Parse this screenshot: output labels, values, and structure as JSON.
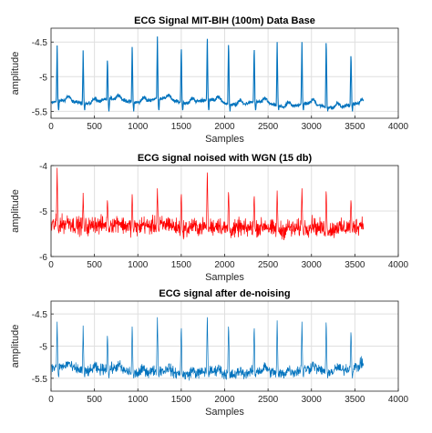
{
  "chart_data": [
    {
      "type": "line",
      "title": "ECG Signal MIT-BIH (100m) Data Base",
      "xlabel": "Samples",
      "ylabel": "amplitude",
      "xlim": [
        0,
        4000
      ],
      "ylim": [
        -5.6,
        -4.3
      ],
      "x_ticks": [
        0,
        500,
        1000,
        1500,
        2000,
        2500,
        3000,
        3500,
        4000
      ],
      "y_ticks": [
        -5.5,
        -5,
        -4.5
      ],
      "grid": true,
      "color": "#0072bd",
      "series": [
        {
          "x_range": [
            1,
            3600
          ],
          "baseline": -5.38,
          "noise": 0.02,
          "peaks": [
            {
              "x": 70,
              "y": -4.55
            },
            {
              "x": 370,
              "y": -4.62
            },
            {
              "x": 650,
              "y": -4.7
            },
            {
              "x": 935,
              "y": -4.48
            },
            {
              "x": 1225,
              "y": -4.42
            },
            {
              "x": 1500,
              "y": -4.52
            },
            {
              "x": 1800,
              "y": -4.35
            },
            {
              "x": 2045,
              "y": -4.45
            },
            {
              "x": 2340,
              "y": -4.53
            },
            {
              "x": 2605,
              "y": -4.5
            },
            {
              "x": 2890,
              "y": -4.5
            },
            {
              "x": 3170,
              "y": -4.42
            },
            {
              "x": 3455,
              "y": -4.63
            }
          ]
        }
      ]
    },
    {
      "type": "line",
      "title": "ECG signal noised with WGN (15 db)",
      "xlabel": "Samples",
      "ylabel": "amplitude",
      "xlim": [
        0,
        4000
      ],
      "ylim": [
        -6,
        -4
      ],
      "x_ticks": [
        0,
        500,
        1000,
        1500,
        2000,
        2500,
        3000,
        3500,
        4000
      ],
      "y_ticks": [
        -6,
        -5,
        -4
      ],
      "grid": true,
      "color": "#ff0000",
      "series": [
        {
          "x_range": [
            1,
            3600
          ],
          "baseline": -5.35,
          "noise": 0.16,
          "peaks": [
            {
              "x": 70,
              "y": -4.05
            },
            {
              "x": 370,
              "y": -4.6
            },
            {
              "x": 650,
              "y": -4.7
            },
            {
              "x": 935,
              "y": -4.55
            },
            {
              "x": 1225,
              "y": -4.5
            },
            {
              "x": 1500,
              "y": -4.55
            },
            {
              "x": 1800,
              "y": -4.02
            },
            {
              "x": 2045,
              "y": -4.5
            },
            {
              "x": 2340,
              "y": -4.6
            },
            {
              "x": 2605,
              "y": -4.55
            },
            {
              "x": 2890,
              "y": -4.5
            },
            {
              "x": 3170,
              "y": -4.48
            },
            {
              "x": 3455,
              "y": -4.7
            }
          ]
        }
      ]
    },
    {
      "type": "line",
      "title": "ECG signal after de-noising",
      "xlabel": "Samples",
      "ylabel": "amplitude",
      "xlim": [
        0,
        4000
      ],
      "ylim": [
        -5.7,
        -4.3
      ],
      "x_ticks": [
        0,
        500,
        1000,
        1500,
        2000,
        2500,
        3000,
        3500,
        4000
      ],
      "y_ticks": [
        -5.5,
        -5,
        -4.5
      ],
      "grid": true,
      "color": "#0072bd",
      "series": [
        {
          "x_range": [
            1,
            3600
          ],
          "baseline": -5.38,
          "noise": 0.07,
          "peaks": [
            {
              "x": 70,
              "y": -4.62
            },
            {
              "x": 370,
              "y": -4.68
            },
            {
              "x": 650,
              "y": -4.78
            },
            {
              "x": 935,
              "y": -4.62
            },
            {
              "x": 1225,
              "y": -4.55
            },
            {
              "x": 1500,
              "y": -4.65
            },
            {
              "x": 1800,
              "y": -4.46
            },
            {
              "x": 2045,
              "y": -4.62
            },
            {
              "x": 2340,
              "y": -4.65
            },
            {
              "x": 2605,
              "y": -4.6
            },
            {
              "x": 2890,
              "y": -4.62
            },
            {
              "x": 3170,
              "y": -4.55
            },
            {
              "x": 3455,
              "y": -4.72
            }
          ]
        }
      ]
    }
  ]
}
